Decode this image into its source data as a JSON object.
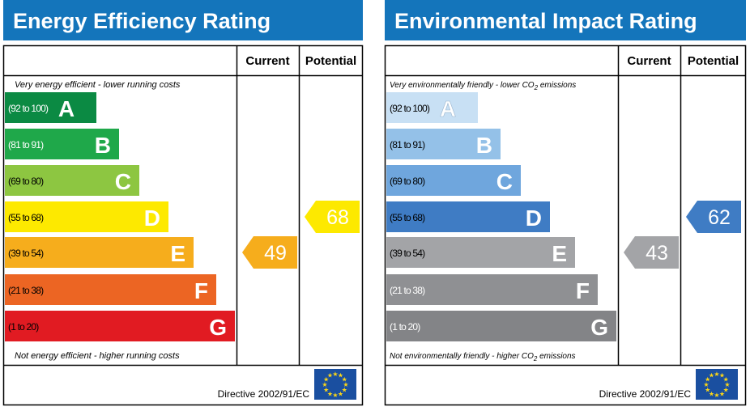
{
  "charts": [
    {
      "title": "Energy Efficiency Rating",
      "header_current": "Current",
      "header_potential": "Potential",
      "top_note": "Very energy efficient - lower running costs",
      "bottom_note": "Not energy efficient - higher running costs",
      "directive": "Directive 2002/91/EC"
    },
    {
      "title": "Environmental Impact Rating",
      "header_current": "Current",
      "header_potential": "Potential",
      "top_note_prefix": "Very environmentally friendly - lower CO",
      "top_note_sub": "2",
      "top_note_suffix": " emissions",
      "bottom_note_prefix": "Not environmentally friendly - higher CO",
      "bottom_note_sub": "2",
      "bottom_note_suffix": " emissions",
      "directive": "Directive 2002/91/EC"
    }
  ],
  "colors": {
    "header_blue": "#1475bb",
    "energy_bands": [
      "#0b8a43",
      "#1fa84a",
      "#8dc641",
      "#fde900",
      "#f6ad1c",
      "#ec6523",
      "#e11b22"
    ],
    "environment_bands": [
      "#c8e0f4",
      "#94c1e8",
      "#6fa6dd",
      "#3f7cc4",
      "#a3a4a7",
      "#8f9093",
      "#838487"
    ],
    "eu_flag": "#1a4fa0",
    "eu_stars": "#fcd616"
  },
  "chart_data": [
    {
      "type": "bar",
      "title": "Energy Efficiency Rating",
      "categories": [
        "A",
        "B",
        "C",
        "D",
        "E",
        "F",
        "G"
      ],
      "ranges": [
        "(92 to 100)",
        "(81 to 91)",
        "(69 to 80)",
        "(55 to 68)",
        "(39 to 54)",
        "(21 to 38)",
        "(1 to 20)"
      ],
      "series": [
        {
          "name": "Current",
          "value": 49,
          "band": "E"
        },
        {
          "name": "Potential",
          "value": 68,
          "band": "D"
        }
      ]
    },
    {
      "type": "bar",
      "title": "Environmental Impact Rating",
      "categories": [
        "A",
        "B",
        "C",
        "D",
        "E",
        "F",
        "G"
      ],
      "ranges": [
        "(92 to 100)",
        "(81 to 91)",
        "(69 to 80)",
        "(55 to 68)",
        "(39 to 54)",
        "(21 to 38)",
        "(1 to 20)"
      ],
      "series": [
        {
          "name": "Current",
          "value": 43,
          "band": "E"
        },
        {
          "name": "Potential",
          "value": 62,
          "band": "D"
        }
      ]
    }
  ]
}
